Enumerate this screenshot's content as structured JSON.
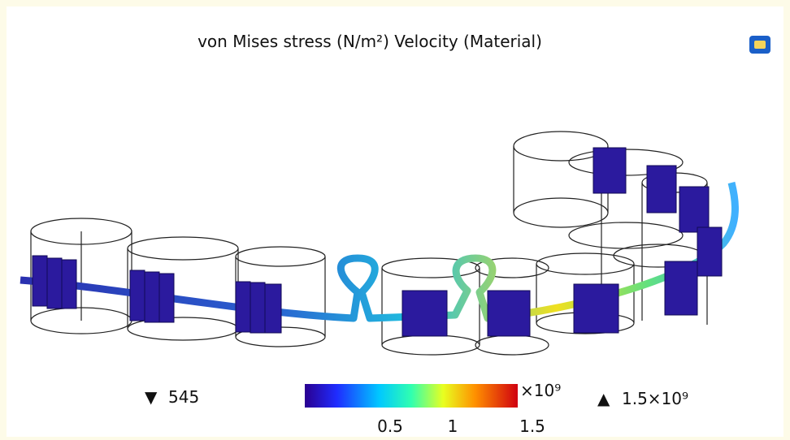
{
  "title": "von Mises stress (N/m²)  Velocity (Material)",
  "min_label": "545",
  "max_label": "1.5×10⁹",
  "colorbar": {
    "exponent": "×10⁹",
    "ticks": [
      "0.5",
      "1",
      "1.5"
    ]
  }
}
